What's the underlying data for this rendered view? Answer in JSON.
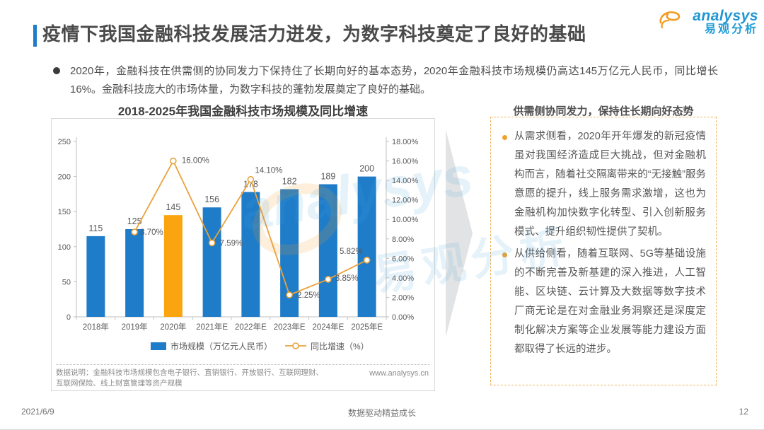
{
  "header": {
    "title": "疫情下我国金融科技发展活力迸发，为数字科技奠定了良好的基础",
    "logo": {
      "brand": "analysys",
      "brand_cn": "易观分析"
    }
  },
  "intro_bullet": "2020年，金融科技在供需侧的协同发力下保持住了长期向好的基本态势，2020年金融科技市场规模仍高达145万亿元人民币，同比增长16%。金融科技庞大的市场体量，为数字科技的蓬勃发展奠定了良好的基础。",
  "chart_data": {
    "type": "bar",
    "combo": "bar+line",
    "title": "2018-2025年我国金融科技市场规模及同比增速",
    "categories": [
      "2018年",
      "2019年",
      "2020年",
      "2021年E",
      "2022年E",
      "2023年E",
      "2024年E",
      "2025年E"
    ],
    "series": [
      {
        "name": "市场规模（万亿元人民币）",
        "type": "bar",
        "values": [
          115,
          125,
          145,
          156,
          178,
          182,
          189,
          200
        ]
      },
      {
        "name": "同比增速（%）",
        "type": "line",
        "values": [
          null,
          8.7,
          16.0,
          7.59,
          14.1,
          2.25,
          3.85,
          5.82
        ],
        "labels": [
          null,
          "8.70%",
          "16.00%",
          "7.59%",
          "14.10%",
          "2.25%",
          "3.85%",
          "5.82%"
        ]
      }
    ],
    "highlight_index": 2,
    "left_axis": {
      "min": 0,
      "max": 250,
      "step": 50
    },
    "right_axis": {
      "min": 0,
      "max": 18,
      "step": 2,
      "suffix": "%"
    },
    "grid": false,
    "legend_position": "bottom"
  },
  "chart_note": {
    "text": "数据说明：金融科技市场规模包含电子银行、直销银行、开放银行、互联网理财、互联网保险、线上财富管理等资产规模",
    "url": "www.analysys.cn"
  },
  "right_panel": {
    "heading": "供需侧协同发力，保持住长期向好态势",
    "bullets": [
      "从需求侧看，2020年开年爆发的新冠疫情虽对我国经济造成巨大挑战，但对金融机构而言，随着社交隔离带来的“无接触”服务意愿的提升，线上服务需求激增，这也为金融机构加快数字化转型、引入创新服务模式、提升组织韧性提供了契机。",
      "从供给侧看，随着互联网、5G等基础设施的不断完善及新基建的深入推进，人工智能、区块链、云计算及大数据等数字技术厂商无论是在对金融业务洞察还是深度定制化解决方案等企业发展等能力建设方面都取得了长远的进步。"
    ]
  },
  "footer": {
    "date": "2021/6/9",
    "center": "数据驱动精益成长",
    "page": "12"
  },
  "colors": {
    "bar_blue": "#1F7CC9",
    "bar_highlight": "#FAA50F",
    "line_orange": "#E9A23B",
    "axis_gray": "#BFBFBF",
    "label_gray": "#595959",
    "accent_blue": "#1F7CC9",
    "panel_border": "#F2B661",
    "brand_blue": "#2096D3",
    "brand_orange": "#F29A1F"
  }
}
